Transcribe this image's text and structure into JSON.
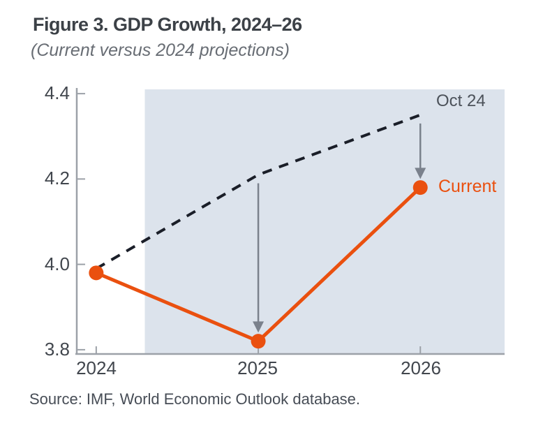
{
  "figure": {
    "title": "Figure 3. GDP Growth, 2024–26",
    "subtitle": "(Current versus 2024 projections)",
    "source": "Source: IMF, World Economic Outlook database."
  },
  "chart_data": {
    "type": "line",
    "title": "Figure 3. GDP Growth, 2024–26",
    "subtitle": "(Current versus 2024 projections)",
    "x": [
      2024,
      2025,
      2026
    ],
    "x_tick_labels": [
      "2024",
      "2025",
      "2026"
    ],
    "y_ticks": [
      4.4,
      4.2,
      4.0,
      3.8
    ],
    "y_tick_labels": [
      "4.4",
      "4.2",
      "4.0",
      "3.8"
    ],
    "xlim": [
      2023.88,
      2026.52
    ],
    "ylim": [
      3.79,
      4.41
    ],
    "grid": false,
    "legend_position": "inline-annotations",
    "series": [
      {
        "name": "Oct 24",
        "style": "dashed",
        "color": "#1a1e28",
        "values": [
          3.99,
          4.21,
          4.35
        ]
      },
      {
        "name": "Current",
        "style": "solid-markers",
        "color": "#ea500f",
        "values": [
          3.98,
          3.82,
          4.18
        ]
      }
    ],
    "annotations": [
      {
        "text": "Oct 24",
        "color": "#4c525a",
        "anchor_x": 2026,
        "anchor_y": 4.38
      },
      {
        "text": "Current",
        "color": "#ea500f",
        "anchor_x": 2026,
        "anchor_y": 4.18
      }
    ],
    "arrows": [
      {
        "x": 2025,
        "from": 4.19,
        "to": 3.84
      },
      {
        "x": 2026,
        "from": 4.33,
        "to": 4.2
      }
    ],
    "shaded_region": {
      "x_from": 2024.3,
      "x_to": 2026.52,
      "color": "#dce3ec"
    },
    "axis_color": "#9ca1a8",
    "arrow_color": "#7a818c",
    "source": "Source: IMF, World Economic Outlook database."
  }
}
